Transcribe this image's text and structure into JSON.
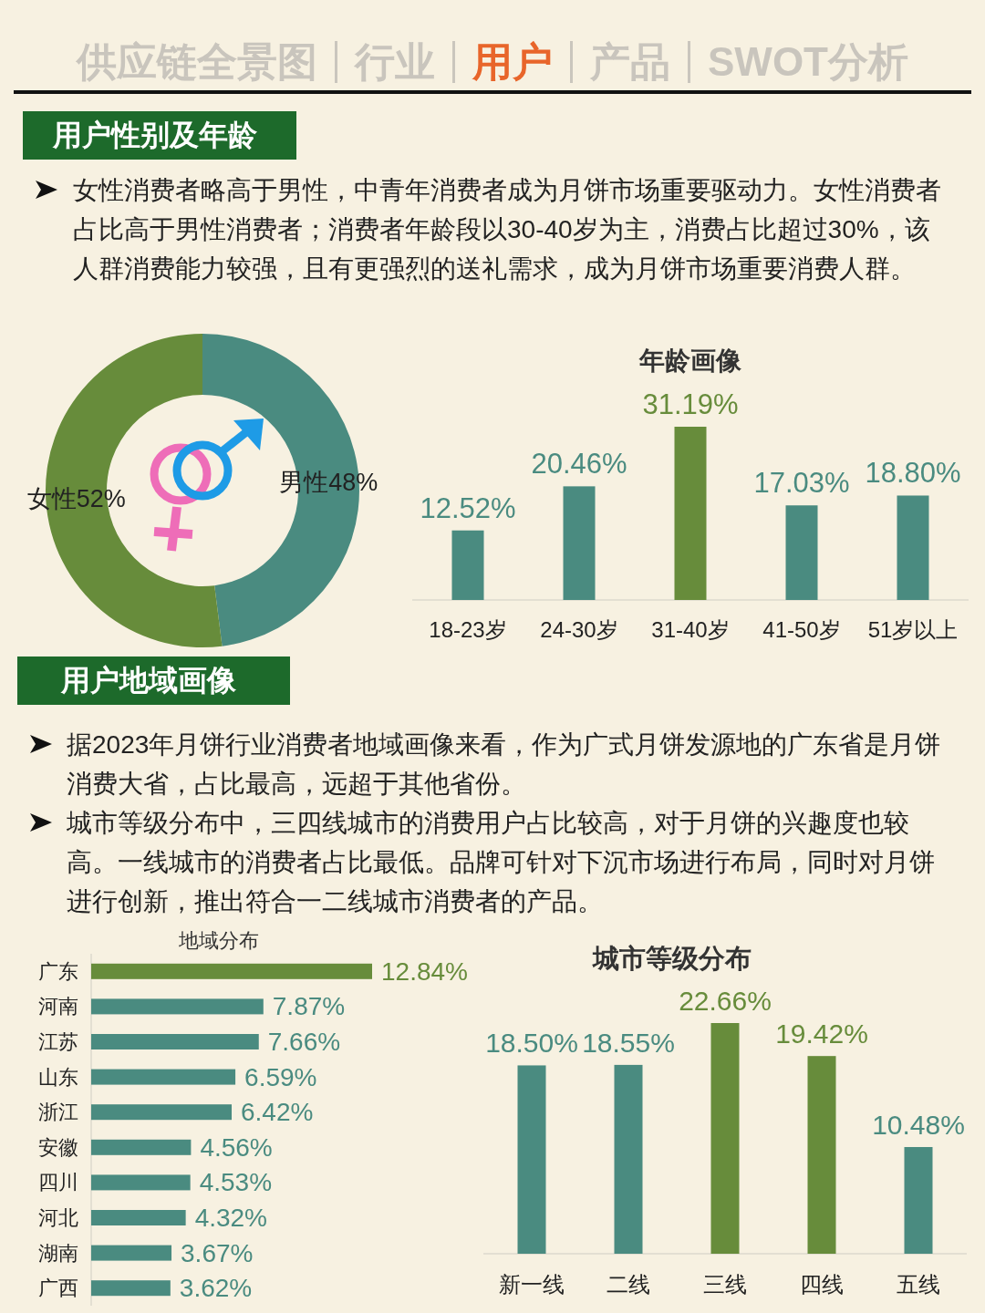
{
  "chart_data": [
    {
      "type": "other",
      "annotations": [
        "供应链全景图",
        "行业",
        "用户",
        "产品",
        "SWOT分析"
      ]
    },
    {
      "type": "other",
      "title": "用户性别及年龄",
      "annotations": [
        "女性消费者略高于男性，中青年消费者成为月饼市场重要驱动力。女性消费者占比高于男性消费者；消费者年龄段以30-40岁为主，消费占比超过30%，该人群消费能力较强，且有更强烈的送礼需求，成为月饼市场重要消费人群。"
      ]
    },
    {
      "type": "donut",
      "categories": [
        "男性",
        "女性"
      ],
      "values": [
        48,
        52
      ],
      "colors": [
        "#4a8b80",
        "#678c3b"
      ],
      "value_labels": [
        "48%",
        "52%"
      ]
    },
    {
      "type": "bar",
      "title": "年龄画像",
      "categories": [
        "18-23岁",
        "24-30岁",
        "31-40岁",
        "41-50岁",
        "51岁以上"
      ],
      "values": [
        12.52,
        20.46,
        31.19,
        17.03,
        18.8
      ],
      "colors": [
        "#4a8b80",
        "#4a8b80",
        "#678c3b",
        "#4a8b80",
        "#4a8b80"
      ],
      "value_labels": [
        "12.52%",
        "20.46%",
        "31.19%",
        "17.03%",
        "18.80%"
      ]
    },
    {
      "type": "other",
      "title": "用户地域画像",
      "annotations": [
        "据2023年月饼行业消费者地域画像来看，作为广式月饼发源地的广东省是月饼消费大省，占比最高，远超于其他省份。",
        "城市等级分布中，三四线城市的消费用户占比较高，对于月饼的兴趣度也较高。一线城市的消费者占比最低。品牌可针对下沉市场进行布局，同时对月饼进行创新，推出符合一二线城市消费者的产品。"
      ]
    },
    {
      "type": "bar",
      "orientation": "horizontal",
      "title": "地域分布",
      "categories": [
        "广东",
        "河南",
        "江苏",
        "山东",
        "浙江",
        "安徽",
        "四川",
        "河北",
        "湖南",
        "广西"
      ],
      "values": [
        12.84,
        7.87,
        7.66,
        6.59,
        6.42,
        4.56,
        4.53,
        4.32,
        3.67,
        3.62
      ],
      "colors": [
        "#678c3b",
        "#4a8b80",
        "#4a8b80",
        "#4a8b80",
        "#4a8b80",
        "#4a8b80",
        "#4a8b80",
        "#4a8b80",
        "#4a8b80",
        "#4a8b80"
      ],
      "value_labels": [
        "12.84%",
        "7.87%",
        "7.66%",
        "6.59%",
        "6.42%",
        "4.56%",
        "4.53%",
        "4.32%",
        "3.67%",
        "3.62%"
      ]
    },
    {
      "type": "bar",
      "title": "城市等级分布",
      "categories": [
        "新一线",
        "二线",
        "三线",
        "四线",
        "五线"
      ],
      "values": [
        18.5,
        18.55,
        22.66,
        19.42,
        10.48
      ],
      "colors": [
        "#4a8b80",
        "#4a8b80",
        "#678c3b",
        "#678c3b",
        "#4a8b80"
      ],
      "value_labels": [
        "18.50%",
        "18.55%",
        "22.66%",
        "19.42%",
        "10.48%"
      ]
    }
  ]
}
